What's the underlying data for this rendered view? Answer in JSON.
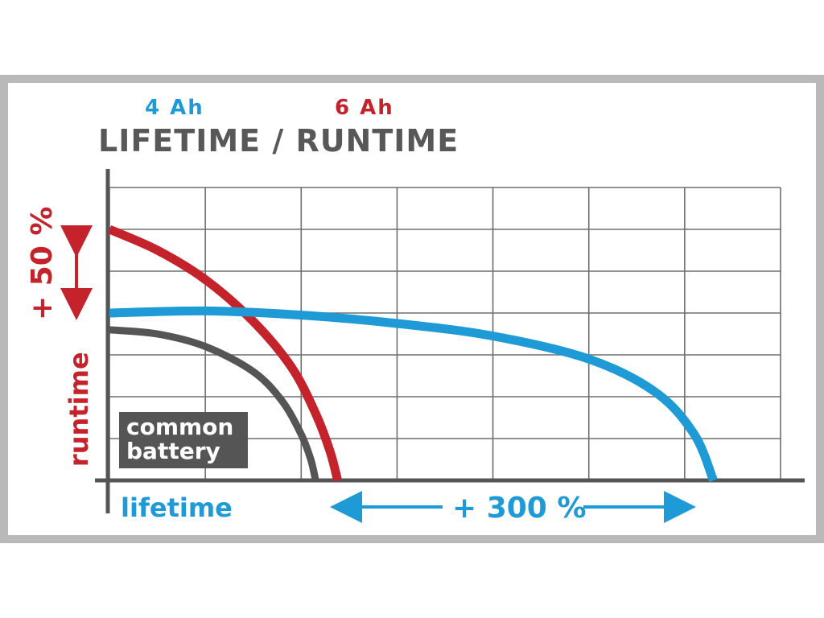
{
  "legend": {
    "series_4ah": "4 Ah",
    "series_6ah": "6 Ah"
  },
  "colors": {
    "blue": "#1e9ad6",
    "red": "#c4232b",
    "gray": "#555555",
    "grid": "#6e6e6e"
  },
  "chart_data": {
    "type": "line",
    "title": "LIFETIME / RUNTIME",
    "xlabel": "lifetime",
    "ylabel": "runtime",
    "grid": true,
    "xlim": [
      0,
      7
    ],
    "ylim": [
      0,
      7
    ],
    "annotations": {
      "runtime_gain": "+ 50 %",
      "lifetime_gain": "+ 300 %",
      "common_battery_line1": "common",
      "common_battery_line2": "battery"
    },
    "series": [
      {
        "name": "common battery",
        "color": "#555555",
        "points": [
          [
            0,
            3.6
          ],
          [
            0.5,
            3.5
          ],
          [
            1.0,
            3.2
          ],
          [
            1.5,
            2.6
          ],
          [
            1.8,
            1.9
          ],
          [
            2.0,
            1.1
          ],
          [
            2.1,
            0.5
          ],
          [
            2.15,
            0.0
          ]
        ]
      },
      {
        "name": "6 Ah",
        "color": "#c4232b",
        "points": [
          [
            0,
            6.0
          ],
          [
            0.5,
            5.5
          ],
          [
            1.0,
            4.8
          ],
          [
            1.5,
            3.8
          ],
          [
            1.9,
            2.7
          ],
          [
            2.15,
            1.6
          ],
          [
            2.3,
            0.7
          ],
          [
            2.38,
            0.0
          ]
        ]
      },
      {
        "name": "4 Ah",
        "color": "#1e9ad6",
        "points": [
          [
            0,
            4.0
          ],
          [
            1.0,
            4.05
          ],
          [
            2.0,
            3.95
          ],
          [
            3.0,
            3.75
          ],
          [
            4.0,
            3.45
          ],
          [
            5.0,
            2.9
          ],
          [
            5.7,
            2.1
          ],
          [
            6.1,
            1.1
          ],
          [
            6.3,
            0.0
          ]
        ]
      }
    ]
  }
}
